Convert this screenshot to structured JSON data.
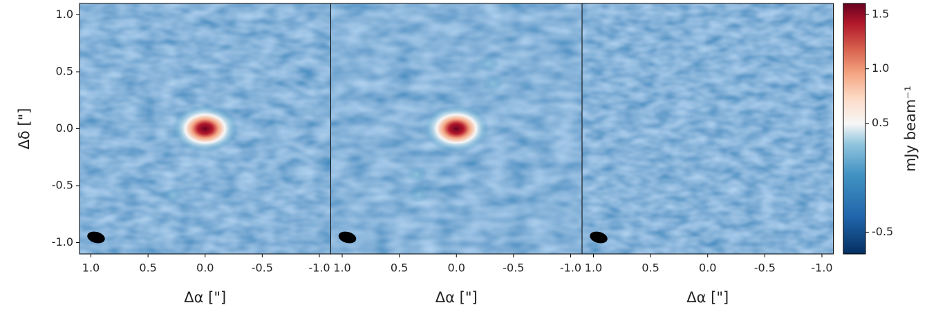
{
  "chart_data": [
    {
      "type": "image",
      "xlabel": "Δα [\"]",
      "ylabel": "Δδ [\"]",
      "xlim": [
        1.1,
        -1.1
      ],
      "ylim": [
        -1.1,
        1.1
      ],
      "xticks": [
        {
          "value": 1,
          "label": "1.0"
        },
        0.5,
        {
          "value": 0,
          "label": "0.0"
        },
        -0.5,
        {
          "value": -1,
          "label": "-1.0"
        }
      ],
      "yticks": [
        {
          "value": 1,
          "label": "1.0"
        },
        0.5,
        {
          "value": 0,
          "label": "0.0"
        },
        -0.5,
        {
          "value": -1,
          "label": "-1.0"
        }
      ]
    },
    {
      "type": "image",
      "xlabel": "Δα [\"]",
      "xlim": [
        1.1,
        -1.1
      ],
      "ylim": [
        -1.1,
        1.1
      ],
      "xticks": [
        {
          "value": 1,
          "label": "1.0"
        },
        0.5,
        {
          "value": 0,
          "label": "0.0"
        },
        -0.5,
        {
          "value": -1,
          "label": "-1.0"
        }
      ]
    },
    {
      "type": "image",
      "xlabel": "Δα [\"]",
      "xlim": [
        1.1,
        -1.1
      ],
      "ylim": [
        -1.1,
        1.1
      ],
      "xticks": [
        {
          "value": 1,
          "label": "1.0"
        },
        0.5,
        {
          "value": 0,
          "label": "0.0"
        },
        -0.5,
        {
          "value": -1,
          "label": "-1.0"
        }
      ]
    },
    {
      "type": "colorbar",
      "label": "mJy beam⁻¹",
      "clim": [
        -0.7,
        1.6
      ],
      "ticks": [
        -0.5,
        0.5,
        {
          "value": 1,
          "label": "1.0"
        },
        1.5
      ]
    }
  ]
}
